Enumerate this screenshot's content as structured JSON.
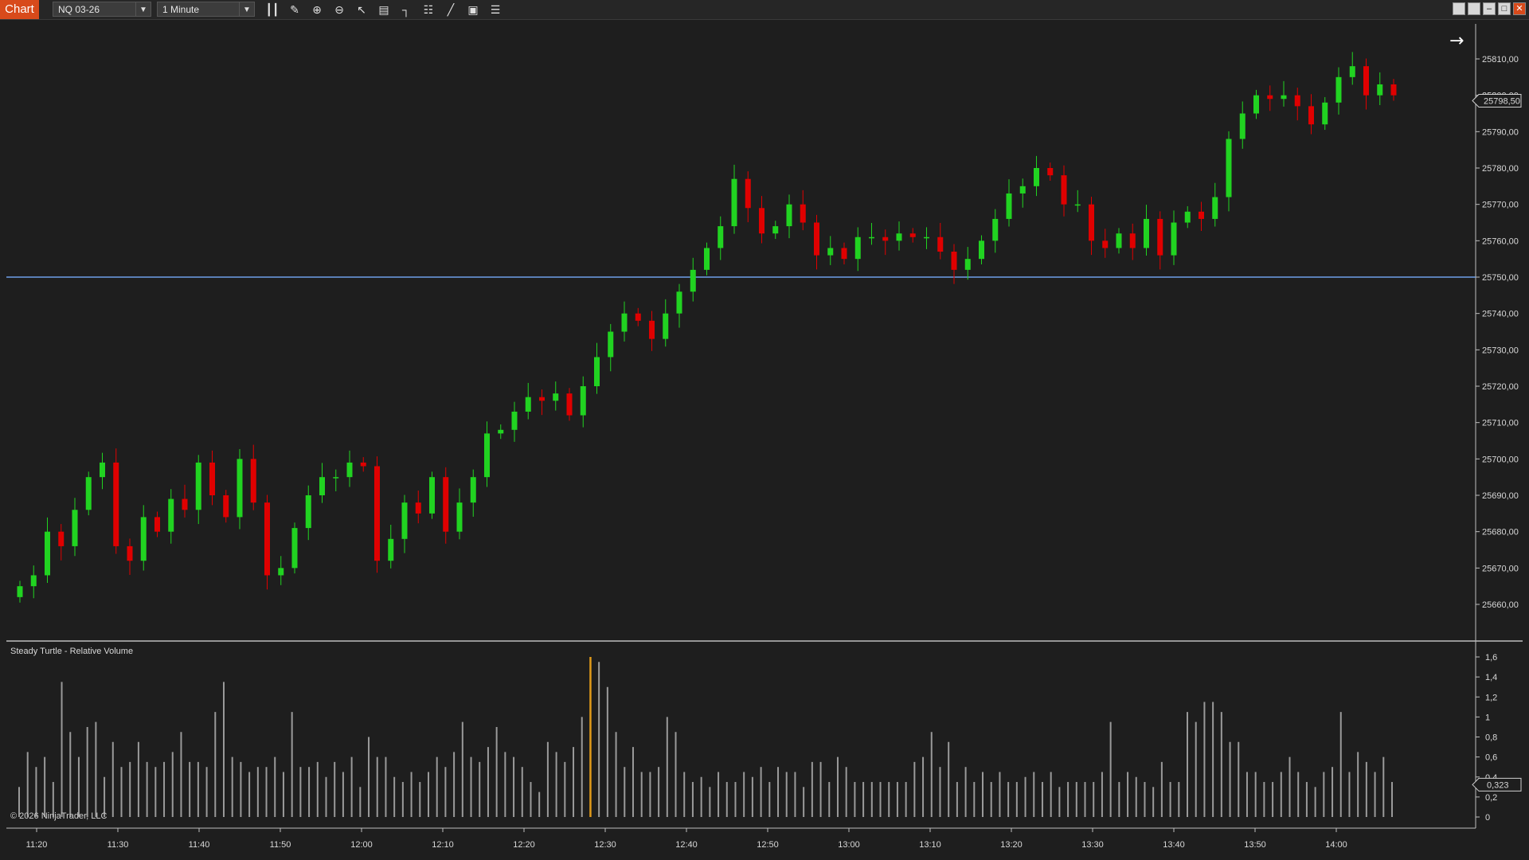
{
  "toolbar": {
    "tab_label": "Chart",
    "instrument": "NQ 03-26",
    "interval": "1 Minute",
    "icons": [
      "bar-type-icon",
      "pencil-draw-icon",
      "zoom-in-icon",
      "zoom-out-icon",
      "pointer-icon",
      "data-box-icon",
      "chart-trader-icon",
      "strategies-icon",
      "indicators-icon",
      "properties-icon",
      "list-icon"
    ],
    "window_buttons": [
      "tile-icon",
      "restore-icon",
      "minimize-icon",
      "maximize-icon",
      "close-icon"
    ]
  },
  "chart": {
    "scroll_arrow": "→",
    "price_labels": [
      "25810,00",
      "25800,00",
      "25790,00",
      "25780,00",
      "25770,00",
      "25760,00",
      "25750,00",
      "25740,00",
      "25730,00",
      "25720,00",
      "25710,00",
      "25700,00",
      "25690,00",
      "25680,00",
      "25670,00",
      "25660,00"
    ],
    "last_price": "25798,50",
    "horizontal_line_price": 25750,
    "colors": {
      "up": "#21d321",
      "down": "#e00000",
      "line": "#6f9fe8",
      "volume": "#9a9a9a",
      "volume_highlight": "#e09a1a"
    }
  },
  "indicator": {
    "title": "Steady Turtle - Relative Volume",
    "axis_labels": [
      "1,6",
      "1,4",
      "1,2",
      "1",
      "0,8",
      "0,6",
      "0,4",
      "0,2",
      "0"
    ],
    "current_value": "0,323"
  },
  "time_labels": [
    "11:20",
    "11:30",
    "11:40",
    "11:50",
    "12:00",
    "12:10",
    "12:20",
    "12:30",
    "12:40",
    "12:50",
    "13:00",
    "13:10",
    "13:20",
    "13:30",
    "13:40",
    "13:50",
    "14:00"
  ],
  "copyright": "© 2026 NinjaTrader, LLC",
  "chart_data": {
    "type": "candlestick",
    "instrument": "NQ 03-26",
    "interval": "1 Minute",
    "time_range": [
      "11:18",
      "14:07"
    ],
    "y_range": [
      25655,
      25815
    ],
    "candles_close_path": [
      25665,
      25668,
      25680,
      25676,
      25686,
      25695,
      25699,
      25676,
      25672,
      25684,
      25680,
      25689,
      25686,
      25699,
      25690,
      25684,
      25700,
      25688,
      25668,
      25670,
      25681,
      25690,
      25695,
      25695,
      25699,
      25698,
      25672,
      25678,
      25688,
      25685,
      25695,
      25680,
      25688,
      25695,
      25707,
      25708,
      25713,
      25717,
      25716,
      25718,
      25712,
      25720,
      25728,
      25735,
      25740,
      25738,
      25733,
      25740,
      25746,
      25752,
      25758,
      25764,
      25777,
      25769,
      25762,
      25764,
      25770,
      25765,
      25756,
      25758,
      25755,
      25761,
      25761,
      25760,
      25762,
      25761,
      25761,
      25757,
      25752,
      25755,
      25760,
      25766,
      25773,
      25775,
      25780,
      25778,
      25770,
      25770,
      25760,
      25758,
      25762,
      25758,
      25766,
      25756,
      25765,
      25768,
      25766,
      25772,
      25788,
      25795,
      25800,
      25799,
      25800,
      25797,
      25792,
      25798,
      25805,
      25808,
      25800,
      25803,
      25800
    ],
    "relative_volume": [
      0.3,
      0.65,
      0.5,
      0.6,
      0.35,
      1.35,
      0.85,
      0.6,
      0.9,
      0.95,
      0.4,
      0.75,
      0.5,
      0.55,
      0.75,
      0.55,
      0.5,
      0.55,
      0.65,
      0.85,
      0.55,
      0.55,
      0.5,
      1.05,
      1.35,
      0.6,
      0.55,
      0.45,
      0.5,
      0.5,
      0.6,
      0.45,
      1.05,
      0.5,
      0.5,
      0.55,
      0.4,
      0.55,
      0.45,
      0.6,
      0.3,
      0.8,
      0.6,
      0.6,
      0.4,
      0.35,
      0.45,
      0.35,
      0.45,
      0.6,
      0.5,
      0.65,
      0.95,
      0.6,
      0.55,
      0.7,
      0.9,
      0.65,
      0.6,
      0.5,
      0.35,
      0.25,
      0.75,
      0.65,
      0.55,
      0.7,
      1.0,
      1.6,
      1.55,
      1.3,
      0.85,
      0.5,
      0.7,
      0.45,
      0.45,
      0.5,
      1.0,
      0.85,
      0.45,
      0.35,
      0.4,
      0.3,
      0.45,
      0.35,
      0.35,
      0.45,
      0.4,
      0.5,
      0.35,
      0.5,
      0.45,
      0.45,
      0.3,
      0.55,
      0.55,
      0.35,
      0.6,
      0.5,
      0.35,
      0.35,
      0.35,
      0.35,
      0.35,
      0.35,
      0.35,
      0.55,
      0.6,
      0.85,
      0.5,
      0.75,
      0.35,
      0.5,
      0.35,
      0.45,
      0.35,
      0.45,
      0.35,
      0.35,
      0.4,
      0.45,
      0.35,
      0.45,
      0.3,
      0.35,
      0.35,
      0.35,
      0.35,
      0.45,
      0.95,
      0.35,
      0.45,
      0.4,
      0.35,
      0.3,
      0.55,
      0.35,
      0.35,
      1.05,
      0.95,
      1.15,
      1.15,
      1.05,
      0.75,
      0.75,
      0.45,
      0.45,
      0.35,
      0.35,
      0.45,
      0.6,
      0.45,
      0.35,
      0.3,
      0.45,
      0.5,
      1.05,
      0.45,
      0.65,
      0.55,
      0.45,
      0.6,
      0.35
    ]
  }
}
